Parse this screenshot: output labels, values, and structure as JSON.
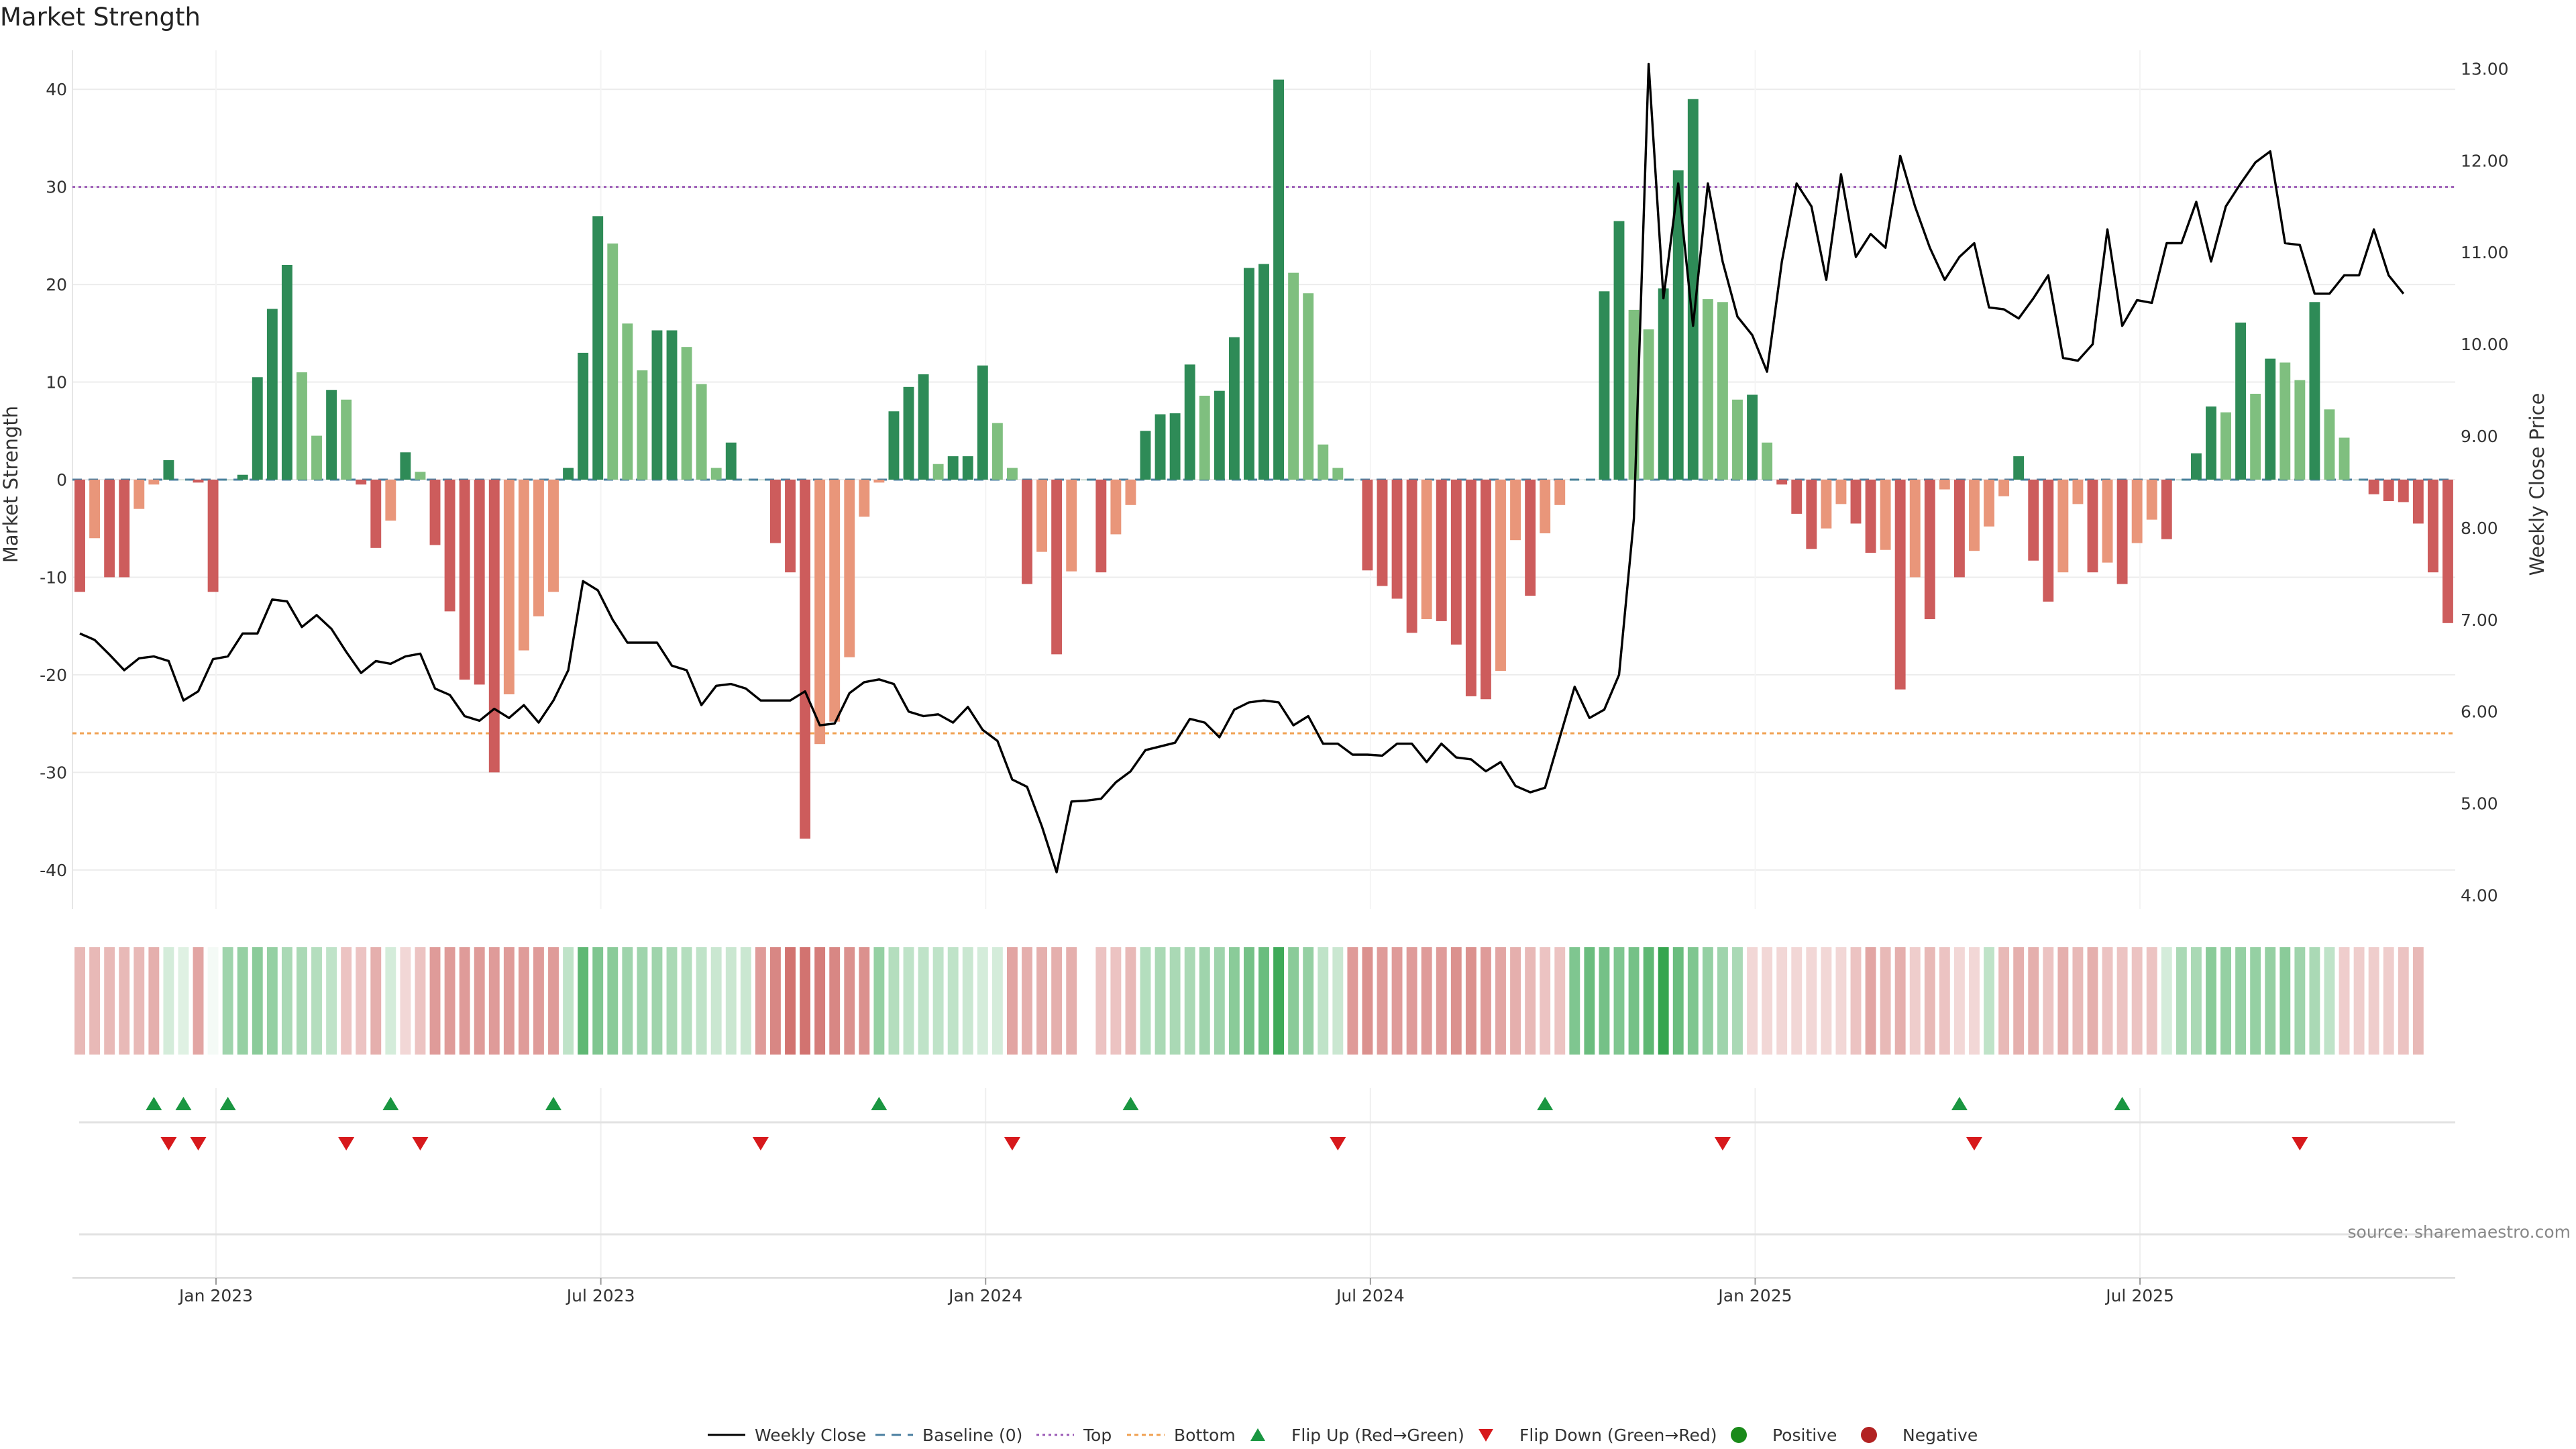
{
  "chart_data": {
    "type": "bar",
    "title": "Market Strength",
    "ylabel": "Market Strength",
    "y2label": "Weekly Close Price",
    "ylim": [
      -44,
      44
    ],
    "y2lim": [
      3.85,
      13.2
    ],
    "yticks": [
      "40",
      "30",
      "20",
      "10",
      "0",
      "-10",
      "-20",
      "-30",
      "-40"
    ],
    "y2ticks": [
      "13.00",
      "12.00",
      "11.00",
      "10.00",
      "9.00",
      "8.00",
      "7.00",
      "6.00",
      "5.00",
      "4.00"
    ],
    "xticks": [
      "Jan 2023",
      "Jul 2023",
      "Jan 2024",
      "Jul 2024",
      "Jan 2025",
      "Jul 2025"
    ],
    "top_line": 30,
    "bottom_line": -26,
    "strength": [
      -11.5,
      -6,
      -10,
      -10,
      -3,
      -0.5,
      2,
      0,
      -0.3,
      -11.5,
      0,
      0.5,
      10.5,
      17.5,
      22,
      11,
      4.5,
      9.2,
      8.2,
      -0.5,
      -7,
      -4.2,
      2.8,
      0.8,
      -6.7,
      -13.5,
      -20.5,
      -21,
      -30,
      -22,
      -17.5,
      -14,
      -11.5,
      1.2,
      13,
      27,
      24.2,
      16,
      11.2,
      15.3,
      15.3,
      13.6,
      9.8,
      1.2,
      3.8,
      0,
      0,
      -6.5,
      -9.5,
      -36.8,
      -27.1,
      -24.8,
      -18.2,
      -3.8,
      -0.3,
      7,
      9.5,
      10.8,
      1.6,
      2.4,
      2.4,
      11.7,
      5.8,
      1.2,
      -10.7,
      -7.4,
      -17.9,
      -9.4,
      0,
      -9.5,
      -5.6,
      -2.6,
      5,
      6.7,
      6.8,
      11.8,
      8.6,
      9.1,
      14.6,
      21.7,
      22.1,
      41,
      21.2,
      19.1,
      3.6,
      1.2,
      0,
      -9.3,
      -10.9,
      -12.2,
      -15.7,
      -14.3,
      -14.5,
      -16.9,
      -22.2,
      -22.5,
      -19.6,
      -6.2,
      -11.9,
      -5.5,
      -2.6,
      0,
      0,
      19.3,
      26.5,
      17.4,
      15.4,
      19.6,
      31.7,
      39,
      18.5,
      18.2,
      8.2,
      8.7,
      3.8,
      -0.5,
      -3.5,
      -7.1,
      -5,
      -2.5,
      -4.5,
      -7.5,
      -7.2,
      -21.5,
      -10,
      -14.3,
      -1,
      -10,
      -7.3,
      -4.8,
      -1.7,
      2.4,
      -8.3,
      -12.5,
      -9.5,
      -2.5,
      -9.5,
      -8.5,
      -10.7,
      -6.5,
      -4.1,
      -6.1,
      0,
      2.7,
      7.5,
      6.9,
      16.1,
      8.8,
      12.4,
      12,
      10.2,
      18.2,
      7.2,
      4.3,
      0,
      -1.5,
      -2.2,
      -2.3,
      -4.5,
      -9.5,
      -14.7
    ],
    "close": [
      6.85,
      6.78,
      6.62,
      6.45,
      6.58,
      6.6,
      6.55,
      6.12,
      6.22,
      6.57,
      6.6,
      6.85,
      6.85,
      7.22,
      7.2,
      6.92,
      7.05,
      6.9,
      6.65,
      6.42,
      6.55,
      6.52,
      6.6,
      6.63,
      6.25,
      6.18,
      5.95,
      5.9,
      6.03,
      5.93,
      6.07,
      5.88,
      6.12,
      6.45,
      7.42,
      7.32,
      7.0,
      6.75,
      6.75,
      6.75,
      6.5,
      6.45,
      6.07,
      6.28,
      6.3,
      6.25,
      6.12,
      6.12,
      6.12,
      6.22,
      5.85,
      5.87,
      6.2,
      6.32,
      6.35,
      6.3,
      6.0,
      5.95,
      5.97,
      5.88,
      6.05,
      5.8,
      5.68,
      5.26,
      5.18,
      4.75,
      4.25,
      5.02,
      5.03,
      5.05,
      5.23,
      5.35,
      5.58,
      5.62,
      5.66,
      5.92,
      5.88,
      5.72,
      6.02,
      6.1,
      6.12,
      6.1,
      5.85,
      5.95,
      5.65,
      5.65,
      5.53,
      5.53,
      5.52,
      5.65,
      5.65,
      5.45,
      5.65,
      5.5,
      5.48,
      5.35,
      5.45,
      5.19,
      5.12,
      5.17,
      5.72,
      6.27,
      5.93,
      6.02,
      6.4,
      8.1,
      13.05,
      10.5,
      11.75,
      10.2,
      11.75,
      10.9,
      10.3,
      10.1,
      9.7,
      10.9,
      11.75,
      11.5,
      10.7,
      11.85,
      10.95,
      11.2,
      11.05,
      12.05,
      11.5,
      11.05,
      10.7,
      10.95,
      11.1,
      10.4,
      10.38,
      10.28,
      10.5,
      10.75,
      9.85,
      9.82,
      10.0,
      11.25,
      10.2,
      10.48,
      10.45,
      11.1,
      11.1,
      11.55,
      10.9,
      11.5,
      11.75,
      11.98,
      12.1,
      11.1,
      11.08,
      10.55,
      10.55,
      10.75,
      10.75,
      11.25,
      10.75,
      10.55
    ],
    "heat_values": [
      -0.35,
      -0.35,
      -0.35,
      -0.35,
      -0.35,
      -0.4,
      0.2,
      0.15,
      -0.45,
      0.05,
      0.45,
      0.5,
      0.55,
      0.5,
      0.4,
      0.4,
      0.35,
      0.3,
      -0.3,
      -0.3,
      -0.4,
      0.2,
      -0.2,
      -0.3,
      -0.5,
      -0.5,
      -0.5,
      -0.5,
      -0.5,
      -0.5,
      -0.5,
      -0.5,
      -0.5,
      0.3,
      0.75,
      0.6,
      0.55,
      0.45,
      0.45,
      0.45,
      0.4,
      0.35,
      0.3,
      0.25,
      0.25,
      0.25,
      -0.5,
      -0.6,
      -0.7,
      -0.7,
      -0.65,
      -0.6,
      -0.55,
      -0.55,
      0.5,
      0.35,
      0.3,
      0.3,
      0.3,
      0.3,
      0.25,
      0.2,
      0.2,
      -0.45,
      -0.4,
      -0.4,
      -0.4,
      -0.4,
      null,
      -0.3,
      -0.3,
      -0.35,
      0.35,
      0.4,
      0.4,
      0.4,
      0.45,
      0.45,
      0.55,
      0.65,
      0.7,
      0.9,
      0.55,
      0.5,
      0.3,
      0.25,
      -0.5,
      -0.55,
      -0.5,
      -0.5,
      -0.5,
      -0.5,
      -0.5,
      -0.55,
      -0.55,
      -0.5,
      -0.45,
      -0.4,
      -0.35,
      -0.3,
      -0.3,
      0.6,
      0.7,
      0.65,
      0.6,
      0.65,
      0.75,
      0.95,
      0.7,
      0.6,
      0.5,
      0.45,
      0.4,
      -0.2,
      -0.2,
      -0.2,
      -0.2,
      -0.2,
      -0.2,
      -0.2,
      -0.3,
      -0.45,
      -0.35,
      -0.4,
      -0.25,
      -0.35,
      -0.3,
      -0.2,
      -0.2,
      0.3,
      -0.35,
      -0.4,
      -0.4,
      -0.3,
      -0.4,
      -0.35,
      -0.4,
      -0.3,
      -0.3,
      -0.3,
      -0.3,
      0.2,
      0.4,
      0.4,
      0.55,
      0.5,
      0.5,
      0.5,
      0.5,
      0.55,
      0.45,
      0.4,
      0.3,
      -0.25,
      -0.25,
      -0.25,
      -0.25,
      -0.3,
      -0.35
    ],
    "flip_up_weeks": [
      5,
      7,
      10,
      21,
      32,
      54,
      71,
      99,
      127,
      138
    ],
    "flip_down_weeks": [
      6,
      8,
      18,
      23,
      46,
      63,
      85,
      111,
      128,
      150
    ],
    "x_tick_weeks": [
      9.2,
      35.2,
      61.2,
      87.2,
      113.2,
      139.2
    ],
    "legend": [
      "Weekly Close",
      "Baseline (0)",
      "Top",
      "Bottom",
      "Flip Up (Red→Green)",
      "Flip Down (Green→Red)",
      "Positive",
      "Negative"
    ],
    "source": "source: sharemaestro.com",
    "colors": {
      "strong_green": "#2e8b57",
      "light_green": "#7fbf7f",
      "strong_red": "#cd5c5c",
      "light_red": "#e9967a",
      "close_line": "#000000",
      "top_line": "#9b59b6",
      "bottom_line": "#f0a050",
      "baseline": "#4a7fa0",
      "flip_up": "#1a9641",
      "flip_down": "#d7191c",
      "positive": "#1a8a1a",
      "negative": "#b22222"
    }
  }
}
